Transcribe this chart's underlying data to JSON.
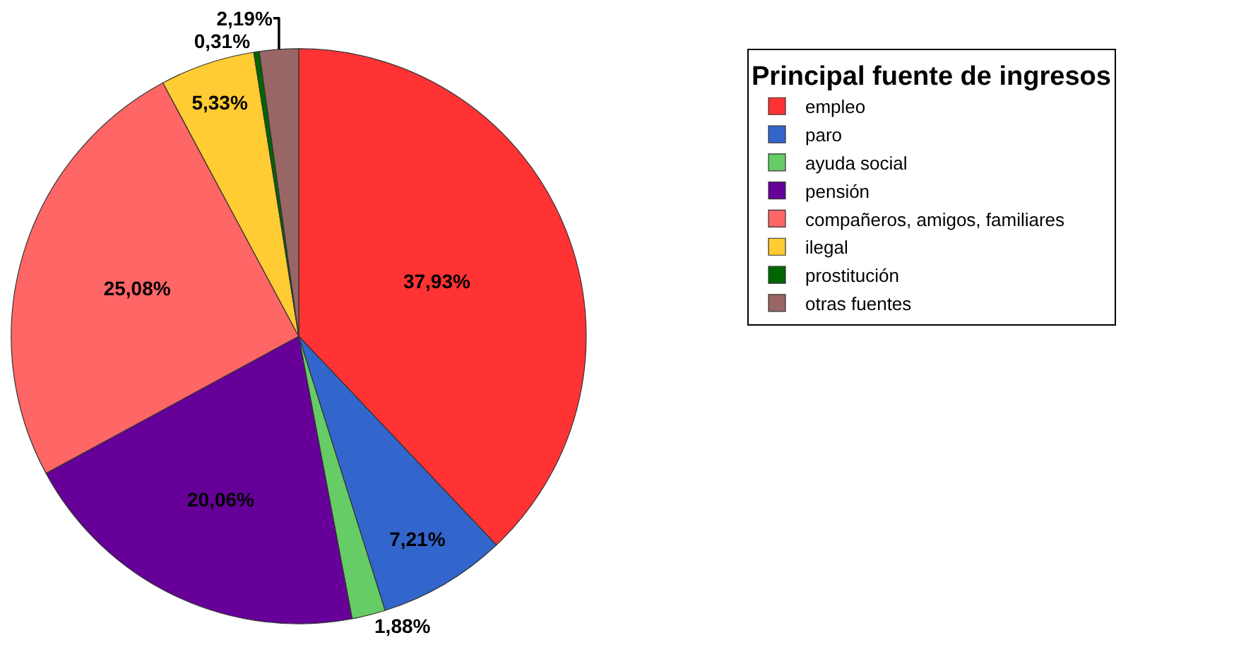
{
  "chart_data": {
    "type": "pie",
    "legend_title": "Principal fuente de ingresos",
    "categories": [
      "empleo",
      "paro",
      "ayuda social",
      "pensión",
      "compañeros, amigos, familiares",
      "ilegal",
      "prostitución",
      "otras fuentes"
    ],
    "values": [
      37.93,
      7.21,
      1.88,
      20.06,
      25.08,
      5.33,
      0.31,
      2.19
    ],
    "value_labels": [
      "37,93%",
      "7,21%",
      "1,88%",
      "20,06%",
      "25,08%",
      "5,33%",
      "0,31%",
      "2,19%"
    ],
    "colors": [
      "#ff3333",
      "#3366cc",
      "#66cc66",
      "#660099",
      "#ff6666",
      "#ffcc33",
      "#006600",
      "#996666"
    ],
    "legend": "right"
  }
}
